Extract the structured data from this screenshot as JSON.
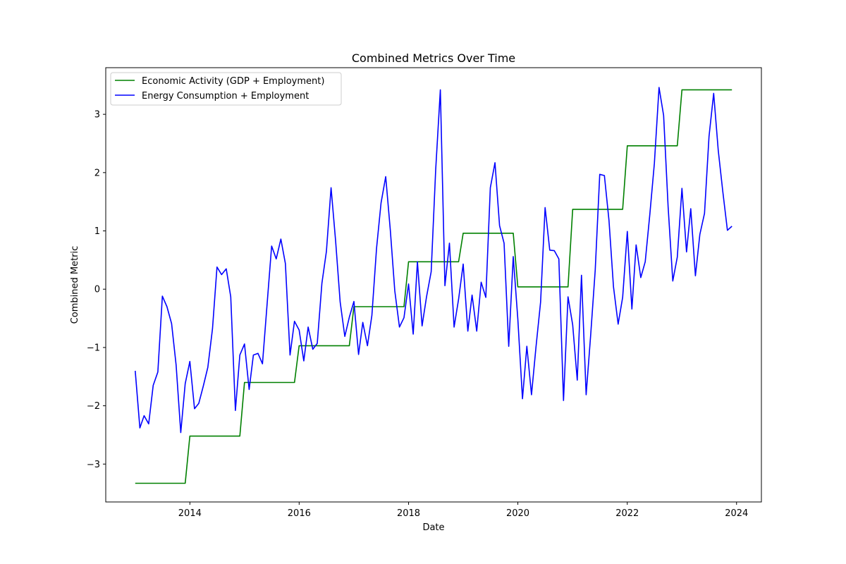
{
  "chart_data": {
    "type": "line",
    "title": "Combined Metrics Over Time",
    "xlabel": "Date",
    "ylabel": "Combined Metric",
    "xlim": [
      "2012-06-18",
      "2024-06-15"
    ],
    "ylim": [
      -3.65,
      3.8
    ],
    "x_ticks": [
      "2014",
      "2016",
      "2018",
      "2020",
      "2022",
      "2024"
    ],
    "y_ticks": [
      "−3",
      "−2",
      "−1",
      "0",
      "1",
      "2",
      "3"
    ],
    "grid": false,
    "legend_position": "upper-left",
    "series": [
      {
        "name": "Economic Activity (GDP + Employment)",
        "color": "#008000",
        "points": [
          [
            "2013-01",
            -3.33
          ],
          [
            "2013-12",
            -3.33
          ],
          [
            "2014-01",
            -2.52
          ],
          [
            "2014-12",
            -2.52
          ],
          [
            "2015-01",
            -1.6
          ],
          [
            "2015-12",
            -1.6
          ],
          [
            "2016-01",
            -0.97
          ],
          [
            "2016-12",
            -0.97
          ],
          [
            "2017-01",
            -0.3
          ],
          [
            "2017-12",
            -0.3
          ],
          [
            "2018-01",
            0.47
          ],
          [
            "2018-12",
            0.47
          ],
          [
            "2019-01",
            0.96
          ],
          [
            "2019-12",
            0.96
          ],
          [
            "2020-01",
            0.04
          ],
          [
            "2020-12",
            0.04
          ],
          [
            "2021-01",
            1.37
          ],
          [
            "2021-12",
            1.37
          ],
          [
            "2022-01",
            2.46
          ],
          [
            "2022-12",
            2.46
          ],
          [
            "2023-01",
            3.42
          ],
          [
            "2023-12",
            3.42
          ]
        ]
      },
      {
        "name": "Energy Consumption + Employment",
        "color": "#0000ff",
        "dates": [
          "2013-01",
          "2013-02",
          "2013-03",
          "2013-04",
          "2013-05",
          "2013-06",
          "2013-07",
          "2013-08",
          "2013-09",
          "2013-10",
          "2013-11",
          "2013-12",
          "2014-01",
          "2014-02",
          "2014-03",
          "2014-04",
          "2014-05",
          "2014-06",
          "2014-07",
          "2014-08",
          "2014-09",
          "2014-10",
          "2014-11",
          "2014-12",
          "2015-01",
          "2015-02",
          "2015-03",
          "2015-04",
          "2015-05",
          "2015-06",
          "2015-07",
          "2015-08",
          "2015-09",
          "2015-10",
          "2015-11",
          "2015-12",
          "2016-01",
          "2016-02",
          "2016-03",
          "2016-04",
          "2016-05",
          "2016-06",
          "2016-07",
          "2016-08",
          "2016-09",
          "2016-10",
          "2016-11",
          "2016-12",
          "2017-01",
          "2017-02",
          "2017-03",
          "2017-04",
          "2017-05",
          "2017-06",
          "2017-07",
          "2017-08",
          "2017-09",
          "2017-10",
          "2017-11",
          "2017-12",
          "2018-01",
          "2018-02",
          "2018-03",
          "2018-04",
          "2018-05",
          "2018-06",
          "2018-07",
          "2018-08",
          "2018-09",
          "2018-10",
          "2018-11",
          "2018-12",
          "2019-01",
          "2019-02",
          "2019-03",
          "2019-04",
          "2019-05",
          "2019-06",
          "2019-07",
          "2019-08",
          "2019-09",
          "2019-10",
          "2019-11",
          "2019-12",
          "2020-01",
          "2020-02",
          "2020-03",
          "2020-04",
          "2020-05",
          "2020-06",
          "2020-07",
          "2020-08",
          "2020-09",
          "2020-10",
          "2020-11",
          "2020-12",
          "2021-01",
          "2021-02",
          "2021-03",
          "2021-04",
          "2021-05",
          "2021-06",
          "2021-07",
          "2021-08",
          "2021-09",
          "2021-10",
          "2021-11",
          "2021-12",
          "2022-01",
          "2022-02",
          "2022-03",
          "2022-04",
          "2022-05",
          "2022-06",
          "2022-07",
          "2022-08",
          "2022-09",
          "2022-10",
          "2022-11",
          "2022-12",
          "2023-01",
          "2023-02",
          "2023-03",
          "2023-04",
          "2023-05",
          "2023-06",
          "2023-07",
          "2023-08",
          "2023-09",
          "2023-10",
          "2023-11",
          "2023-12"
        ],
        "values": [
          -1.4,
          -2.38,
          -2.17,
          -2.31,
          -1.65,
          -1.42,
          -0.12,
          -0.3,
          -0.59,
          -1.3,
          -2.46,
          -1.62,
          -1.24,
          -2.05,
          -1.96,
          -1.66,
          -1.34,
          -0.68,
          0.38,
          0.25,
          0.35,
          -0.13,
          -2.08,
          -1.13,
          -0.94,
          -1.72,
          -1.13,
          -1.1,
          -1.28,
          -0.25,
          0.74,
          0.52,
          0.86,
          0.44,
          -1.13,
          -0.55,
          -0.7,
          -1.23,
          -0.65,
          -1.03,
          -0.93,
          0.1,
          0.65,
          1.74,
          0.82,
          -0.22,
          -0.81,
          -0.48,
          -0.21,
          -1.12,
          -0.57,
          -0.97,
          -0.45,
          0.7,
          1.48,
          1.93,
          1.02,
          -0.03,
          -0.65,
          -0.49,
          0.09,
          -0.77,
          0.47,
          -0.63,
          -0.13,
          0.3,
          2.05,
          3.42,
          0.06,
          0.79,
          -0.65,
          -0.17,
          0.43,
          -0.72,
          -0.1,
          -0.72,
          0.12,
          -0.14,
          1.74,
          2.17,
          1.09,
          0.79,
          -0.98,
          0.56,
          -0.51,
          -1.88,
          -0.98,
          -1.81,
          -1.0,
          -0.22,
          1.4,
          0.67,
          0.66,
          0.52,
          -1.91,
          -0.13,
          -0.61,
          -1.56,
          0.24,
          -1.81,
          -0.81,
          0.33,
          1.97,
          1.95,
          1.18,
          0.04,
          -0.6,
          -0.14,
          0.99,
          -0.34,
          0.76,
          0.2,
          0.47,
          1.29,
          2.16,
          3.46,
          2.98,
          1.41,
          0.14,
          0.55,
          1.73,
          0.64,
          1.38,
          0.23,
          0.94,
          1.3,
          2.62,
          3.36,
          2.38,
          1.68,
          1.01,
          1.08
        ]
      }
    ]
  }
}
